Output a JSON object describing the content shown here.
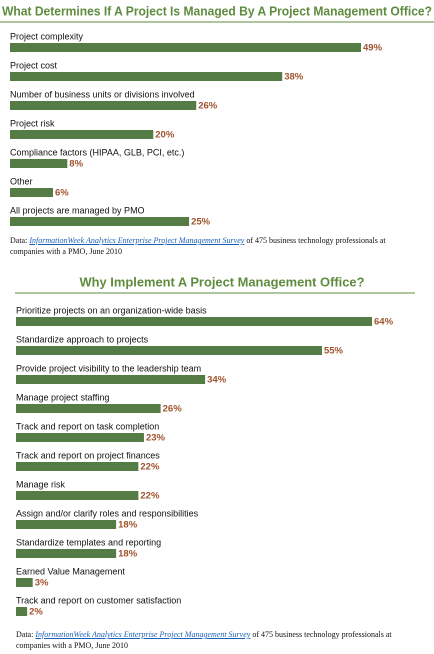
{
  "chart_data": [
    {
      "type": "bar",
      "orientation": "horizontal",
      "title": "What Determines If A Project Is Managed By A Project Management Office?",
      "categories": [
        "Project complexity",
        "Project cost",
        "Number of business units or divisions involved",
        "Project risk",
        "Compliance factors (HIPAA, GLB, PCI, etc.)",
        "Other",
        "All projects are managed by PMO"
      ],
      "values": [
        49,
        38,
        26,
        20,
        8,
        6,
        25
      ],
      "value_labels": [
        "49%",
        "38%",
        "26%",
        "20%",
        "8%",
        "6%",
        "25%"
      ],
      "color": "#557c45",
      "source_prefix": "Data:",
      "source_link": "InformationWeek Analytics Enterprise Project Management Survey",
      "source_suffix": "of 475 business technology professionals at companies with a PMO, June 2010"
    },
    {
      "type": "bar",
      "orientation": "horizontal",
      "title": "Why Implement A Project Management Office?",
      "categories": [
        "Prioritize projects on an organization-wide basis",
        "Standardize approach to projects",
        "Provide project visibility to the leadership team",
        "Manage project staffing",
        "Track and report on task completion",
        "Track and report on project finances",
        "Manage risk",
        "Assign and/or clarify roles and responsibilities",
        "Standardize templates and reporting",
        "Earned Value Management",
        "Track and report on customer satisfaction"
      ],
      "values": [
        64,
        55,
        34,
        26,
        23,
        22,
        22,
        18,
        18,
        3,
        2
      ],
      "value_labels": [
        "64%",
        "55%",
        "34%",
        "26%",
        "23%",
        "22%",
        "22%",
        "18%",
        "18%",
        "3%",
        "2%"
      ],
      "color": "#557c45",
      "source_prefix": "Data:",
      "source_link": "InformationWeek Analytics Enterprise Project Management Survey",
      "source_suffix": "of 475 business technology professionals at companies with a PMO, June 2010"
    }
  ]
}
